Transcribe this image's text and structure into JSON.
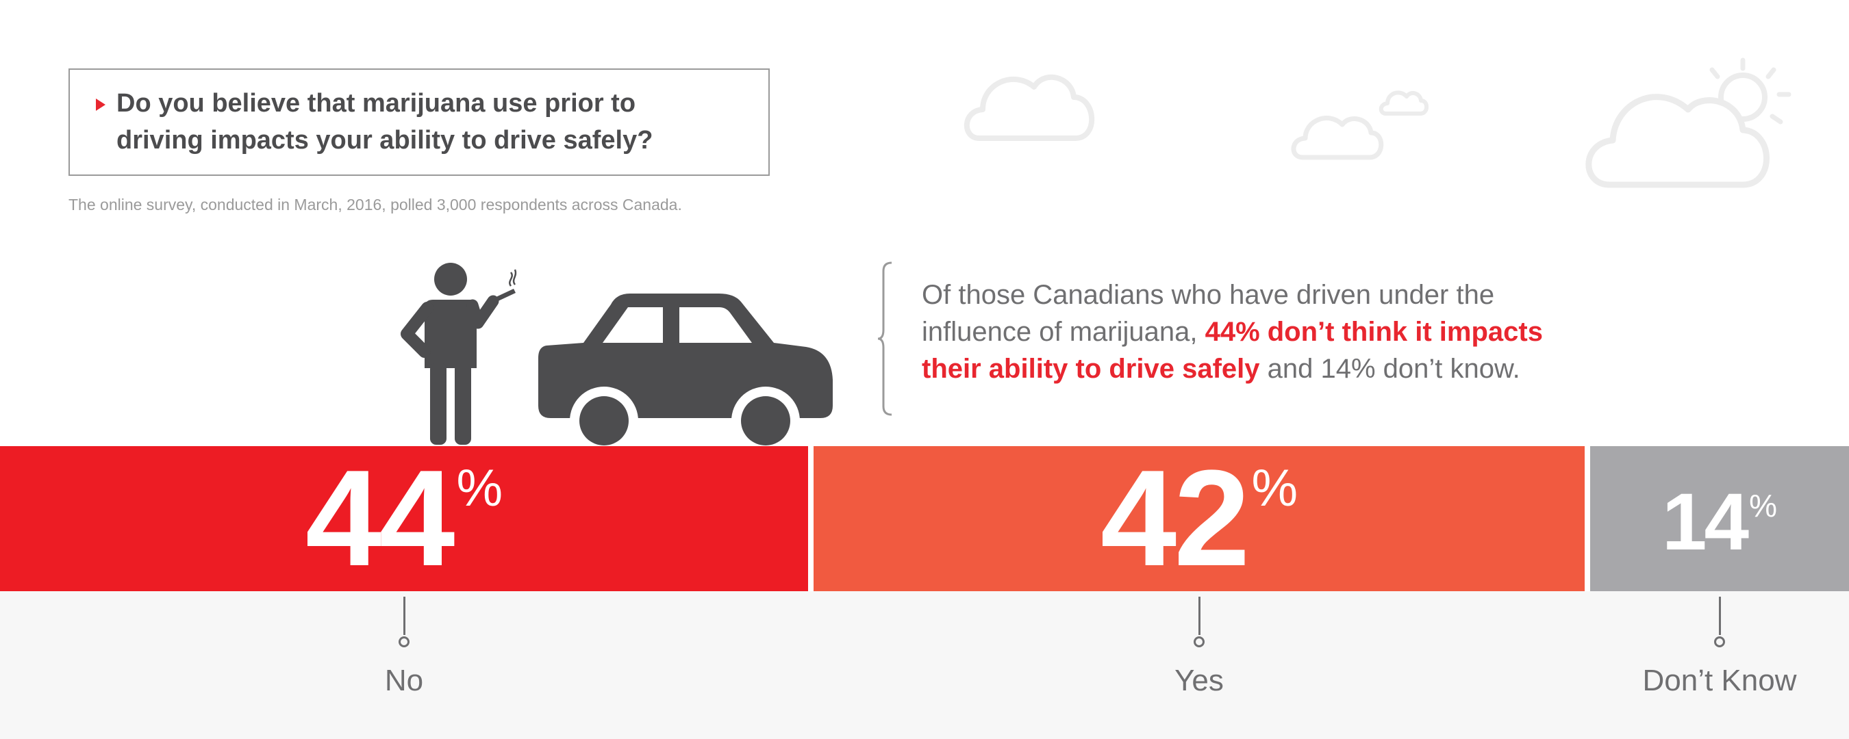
{
  "question": {
    "line1": "Do you believe that marijuana use prior to",
    "line2": "driving impacts your ability to drive safely?"
  },
  "survey_note": "The online survey, conducted in March, 2016, polled 3,000 respondents across Canada.",
  "stat_callout": {
    "line1": "Of those Canadians who have driven under the",
    "line2_plain": "influence of marijuana, ",
    "line2_highlight": "44% don’t think it impacts",
    "line3_highlight": "their ability to drive safely",
    "line3_plain": " and 14% don’t know."
  },
  "icons": [
    "cloud-icon",
    "cloud-icon",
    "cloud-icon",
    "sun-cloud-icon",
    "person-smoking-icon",
    "car-icon"
  ],
  "colors": {
    "no": "#ed1c24",
    "yes": "#f15a40",
    "dont_know": "#a7a7aa",
    "text_gray": "#6f6f71",
    "highlight": "#e8262f"
  },
  "percent_symbol": "%",
  "chart_data": {
    "type": "bar",
    "orientation": "horizontal-stacked",
    "categories": [
      "No",
      "Yes",
      "Don’t Know"
    ],
    "values": [
      44,
      42,
      14
    ],
    "unit": "%"
  }
}
